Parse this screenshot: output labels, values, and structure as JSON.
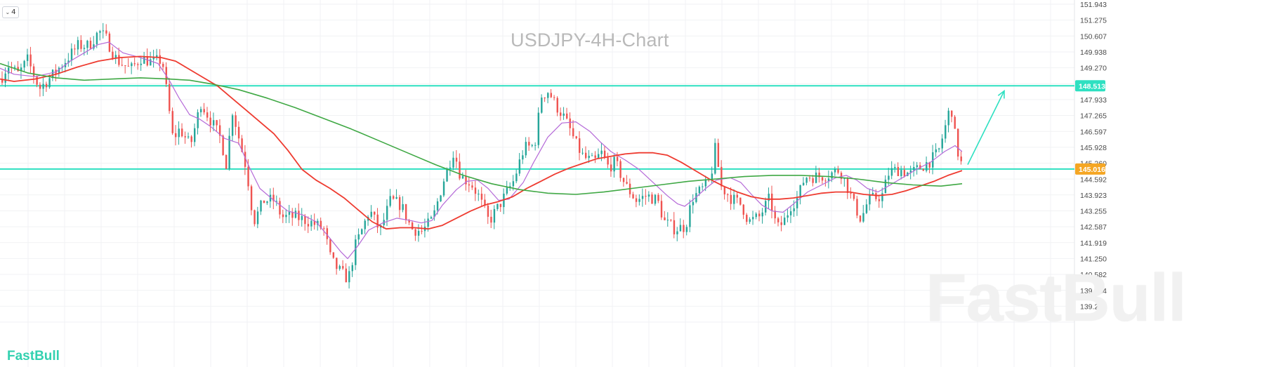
{
  "header": {
    "title": "USDJPY-4H-Chart",
    "collapse_label": "4"
  },
  "branding": {
    "watermark": "FastBull",
    "logo": "FastBull"
  },
  "colors": {
    "bull": "#26a69a",
    "bear": "#ef5350",
    "level": "#2ee0c1",
    "ma_fast": "#b56ad8",
    "ma_mid": "#ee3b30",
    "ma_slow": "#3fa844",
    "badge_upper": "#2ee0c1",
    "badge_lower": "#f5a623",
    "arrow": "#2ee0c1"
  },
  "chart_data": {
    "type": "line",
    "title": "USDJPY-4H-Chart",
    "y_axis": {
      "position": "right",
      "ticks": [
        "151.943",
        "151.275",
        "150.607",
        "149.938",
        "149.270",
        "148.513",
        "147.933",
        "147.265",
        "146.597",
        "145.928",
        "145.260",
        "145.016",
        "144.592",
        "143.923",
        "143.255",
        "142.587",
        "141.919",
        "141.250",
        "140.582",
        "139.914",
        "139.245"
      ],
      "ylim": [
        139.1,
        152.1
      ]
    },
    "levels": [
      {
        "label": "148.513",
        "value": 148.513,
        "badge": "upper"
      },
      {
        "label": "145.016",
        "value": 145.016,
        "badge": "lower"
      }
    ],
    "grid": true,
    "candle_count": 305,
    "price_path": [
      [
        0,
        148.8
      ],
      [
        10,
        149.4
      ],
      [
        25,
        149.0
      ],
      [
        38,
        149.6
      ],
      [
        55,
        148.4
      ],
      [
        75,
        149.0
      ],
      [
        90,
        149.5
      ],
      [
        110,
        150.2
      ],
      [
        125,
        150.2
      ],
      [
        140,
        150.8
      ],
      [
        150,
        150.5
      ],
      [
        165,
        149.6
      ],
      [
        185,
        149.2
      ],
      [
        200,
        149.7
      ],
      [
        215,
        149.5
      ],
      [
        230,
        149.6
      ],
      [
        245,
        146.3
      ],
      [
        255,
        146.7
      ],
      [
        270,
        146.0
      ],
      [
        285,
        147.8
      ],
      [
        300,
        147.0
      ],
      [
        315,
        146.2
      ],
      [
        320,
        145.0
      ],
      [
        330,
        147.5
      ],
      [
        340,
        146.2
      ],
      [
        350,
        145.0
      ],
      [
        360,
        142.8
      ],
      [
        375,
        143.7
      ],
      [
        390,
        143.7
      ],
      [
        400,
        143.0
      ],
      [
        420,
        143.0
      ],
      [
        440,
        142.8
      ],
      [
        460,
        142.5
      ],
      [
        470,
        141.2
      ],
      [
        480,
        140.8
      ],
      [
        490,
        140.5
      ],
      [
        495,
        140.4
      ],
      [
        505,
        141.8
      ],
      [
        515,
        142.5
      ],
      [
        525,
        143.3
      ],
      [
        540,
        142.4
      ],
      [
        555,
        143.7
      ],
      [
        570,
        143.5
      ],
      [
        585,
        142.5
      ],
      [
        600,
        142.4
      ],
      [
        615,
        142.9
      ],
      [
        630,
        144.5
      ],
      [
        645,
        145.8
      ],
      [
        655,
        144.7
      ],
      [
        670,
        144.4
      ],
      [
        680,
        143.9
      ],
      [
        695,
        142.8
      ],
      [
        710,
        143.5
      ],
      [
        730,
        144.5
      ],
      [
        745,
        145.9
      ],
      [
        760,
        146.0
      ],
      [
        770,
        148.1
      ],
      [
        780,
        148.3
      ],
      [
        790,
        147.7
      ],
      [
        800,
        147.3
      ],
      [
        810,
        146.7
      ],
      [
        820,
        146.0
      ],
      [
        830,
        145.5
      ],
      [
        845,
        145.3
      ],
      [
        855,
        145.7
      ],
      [
        865,
        145.1
      ],
      [
        875,
        145.3
      ],
      [
        890,
        144.3
      ],
      [
        905,
        143.7
      ],
      [
        920,
        143.9
      ],
      [
        935,
        143.7
      ],
      [
        945,
        142.8
      ],
      [
        960,
        142.5
      ],
      [
        975,
        142.6
      ],
      [
        985,
        143.8
      ],
      [
        1000,
        144.2
      ],
      [
        1010,
        144.5
      ],
      [
        1018,
        146.0
      ],
      [
        1025,
        144.3
      ],
      [
        1040,
        143.8
      ],
      [
        1055,
        143.5
      ],
      [
        1065,
        142.8
      ],
      [
        1080,
        143.0
      ],
      [
        1095,
        143.8
      ],
      [
        1105,
        142.5
      ],
      [
        1115,
        142.8
      ],
      [
        1125,
        143.5
      ],
      [
        1135,
        143.8
      ],
      [
        1145,
        144.7
      ],
      [
        1165,
        144.7
      ],
      [
        1180,
        144.8
      ],
      [
        1195,
        145.0
      ],
      [
        1205,
        144.3
      ],
      [
        1215,
        143.5
      ],
      [
        1225,
        142.9
      ],
      [
        1235,
        143.7
      ],
      [
        1245,
        143.8
      ],
      [
        1255,
        143.9
      ],
      [
        1265,
        144.9
      ],
      [
        1280,
        145.0
      ],
      [
        1295,
        144.8
      ],
      [
        1310,
        145.1
      ],
      [
        1325,
        145.4
      ],
      [
        1335,
        145.7
      ],
      [
        1345,
        146.8
      ],
      [
        1350,
        147.4
      ],
      [
        1355,
        147.5
      ],
      [
        1360,
        146.0
      ],
      [
        1365,
        145.5
      ],
      [
        1370,
        145.0
      ]
    ],
    "series": [
      {
        "values": [
          [
            0,
            149.25
          ],
          [
            20,
            149.0
          ],
          [
            50,
            148.9
          ],
          [
            80,
            149.1
          ],
          [
            100,
            149.55
          ],
          [
            120,
            149.9
          ],
          [
            140,
            150.25
          ],
          [
            155,
            150.35
          ],
          [
            175,
            149.9
          ],
          [
            200,
            149.7
          ],
          [
            225,
            149.45
          ],
          [
            240,
            148.8
          ],
          [
            255,
            148.0
          ],
          [
            270,
            147.3
          ],
          [
            285,
            147.1
          ],
          [
            300,
            146.8
          ],
          [
            320,
            146.3
          ],
          [
            340,
            146.1
          ],
          [
            355,
            145.1
          ],
          [
            370,
            144.2
          ],
          [
            390,
            143.7
          ],
          [
            410,
            143.25
          ],
          [
            430,
            143.1
          ],
          [
            450,
            142.8
          ],
          [
            470,
            142.1
          ],
          [
            485,
            141.55
          ],
          [
            495,
            141.25
          ],
          [
            510,
            141.8
          ],
          [
            525,
            142.45
          ],
          [
            545,
            142.75
          ],
          [
            565,
            142.95
          ],
          [
            585,
            142.85
          ],
          [
            600,
            142.75
          ],
          [
            615,
            142.85
          ],
          [
            630,
            143.5
          ],
          [
            650,
            144.15
          ],
          [
            665,
            144.5
          ],
          [
            680,
            144.55
          ],
          [
            695,
            144.2
          ],
          [
            710,
            143.7
          ],
          [
            725,
            143.75
          ],
          [
            745,
            144.45
          ],
          [
            760,
            145.3
          ],
          [
            780,
            146.35
          ],
          [
            800,
            146.95
          ],
          [
            820,
            147.0
          ],
          [
            840,
            146.6
          ],
          [
            855,
            146.15
          ],
          [
            870,
            145.75
          ],
          [
            890,
            145.4
          ],
          [
            910,
            145.0
          ],
          [
            930,
            144.45
          ],
          [
            950,
            143.9
          ],
          [
            965,
            143.55
          ],
          [
            975,
            143.45
          ],
          [
            990,
            143.8
          ],
          [
            1005,
            144.2
          ],
          [
            1020,
            144.55
          ],
          [
            1040,
            144.65
          ],
          [
            1055,
            144.45
          ],
          [
            1070,
            143.95
          ],
          [
            1085,
            143.5
          ],
          [
            1100,
            143.25
          ],
          [
            1115,
            143.2
          ],
          [
            1130,
            143.55
          ],
          [
            1150,
            144.05
          ],
          [
            1170,
            144.35
          ],
          [
            1190,
            144.65
          ],
          [
            1205,
            144.75
          ],
          [
            1220,
            144.55
          ],
          [
            1235,
            144.2
          ],
          [
            1250,
            144.05
          ],
          [
            1265,
            144.3
          ],
          [
            1285,
            144.65
          ],
          [
            1305,
            145.0
          ],
          [
            1325,
            145.3
          ],
          [
            1345,
            145.75
          ],
          [
            1360,
            146.0
          ],
          [
            1370,
            145.75
          ]
        ]
      },
      {
        "values": [
          [
            0,
            148.8
          ],
          [
            20,
            148.7
          ],
          [
            50,
            148.8
          ],
          [
            80,
            149.0
          ],
          [
            110,
            149.3
          ],
          [
            140,
            149.55
          ],
          [
            170,
            149.7
          ],
          [
            200,
            149.75
          ],
          [
            230,
            149.7
          ],
          [
            250,
            149.55
          ],
          [
            270,
            149.2
          ],
          [
            290,
            148.85
          ],
          [
            310,
            148.5
          ],
          [
            330,
            148.0
          ],
          [
            350,
            147.5
          ],
          [
            370,
            147.0
          ],
          [
            390,
            146.5
          ],
          [
            410,
            145.8
          ],
          [
            430,
            145.0
          ],
          [
            450,
            144.55
          ],
          [
            470,
            144.2
          ],
          [
            490,
            143.8
          ],
          [
            510,
            143.3
          ],
          [
            530,
            142.8
          ],
          [
            550,
            142.5
          ],
          [
            570,
            142.55
          ],
          [
            590,
            142.55
          ],
          [
            610,
            142.5
          ],
          [
            630,
            142.65
          ],
          [
            650,
            142.95
          ],
          [
            670,
            143.25
          ],
          [
            690,
            143.5
          ],
          [
            710,
            143.65
          ],
          [
            730,
            143.85
          ],
          [
            750,
            144.2
          ],
          [
            770,
            144.5
          ],
          [
            790,
            144.8
          ],
          [
            810,
            145.05
          ],
          [
            830,
            145.25
          ],
          [
            850,
            145.45
          ],
          [
            870,
            145.55
          ],
          [
            890,
            145.65
          ],
          [
            910,
            145.7
          ],
          [
            930,
            145.7
          ],
          [
            950,
            145.6
          ],
          [
            970,
            145.3
          ],
          [
            990,
            144.95
          ],
          [
            1010,
            144.6
          ],
          [
            1030,
            144.3
          ],
          [
            1050,
            144.05
          ],
          [
            1070,
            143.85
          ],
          [
            1090,
            143.75
          ],
          [
            1110,
            143.75
          ],
          [
            1130,
            143.8
          ],
          [
            1150,
            143.9
          ],
          [
            1170,
            144.0
          ],
          [
            1190,
            144.05
          ],
          [
            1210,
            144.05
          ],
          [
            1230,
            143.95
          ],
          [
            1250,
            143.9
          ],
          [
            1270,
            143.95
          ],
          [
            1290,
            144.1
          ],
          [
            1310,
            144.3
          ],
          [
            1330,
            144.5
          ],
          [
            1350,
            144.75
          ],
          [
            1370,
            144.95
          ]
        ]
      },
      {
        "values": [
          [
            0,
            149.45
          ],
          [
            40,
            149.05
          ],
          [
            80,
            148.85
          ],
          [
            120,
            148.75
          ],
          [
            160,
            148.8
          ],
          [
            200,
            148.85
          ],
          [
            240,
            148.8
          ],
          [
            270,
            148.75
          ],
          [
            300,
            148.6
          ],
          [
            340,
            148.35
          ],
          [
            380,
            148.0
          ],
          [
            420,
            147.6
          ],
          [
            460,
            147.15
          ],
          [
            500,
            146.7
          ],
          [
            540,
            146.2
          ],
          [
            580,
            145.7
          ],
          [
            620,
            145.2
          ],
          [
            660,
            144.75
          ],
          [
            700,
            144.4
          ],
          [
            740,
            144.15
          ],
          [
            780,
            144.0
          ],
          [
            820,
            143.95
          ],
          [
            860,
            144.05
          ],
          [
            900,
            144.2
          ],
          [
            940,
            144.35
          ],
          [
            980,
            144.5
          ],
          [
            1020,
            144.6
          ],
          [
            1060,
            144.7
          ],
          [
            1100,
            144.75
          ],
          [
            1140,
            144.75
          ],
          [
            1180,
            144.7
          ],
          [
            1220,
            144.6
          ],
          [
            1260,
            144.45
          ],
          [
            1300,
            144.35
          ],
          [
            1340,
            144.3
          ],
          [
            1370,
            144.4
          ]
        ]
      }
    ],
    "projection": {
      "from": [
        1378,
        145.2
      ],
      "to": [
        1430,
        148.3
      ]
    }
  }
}
